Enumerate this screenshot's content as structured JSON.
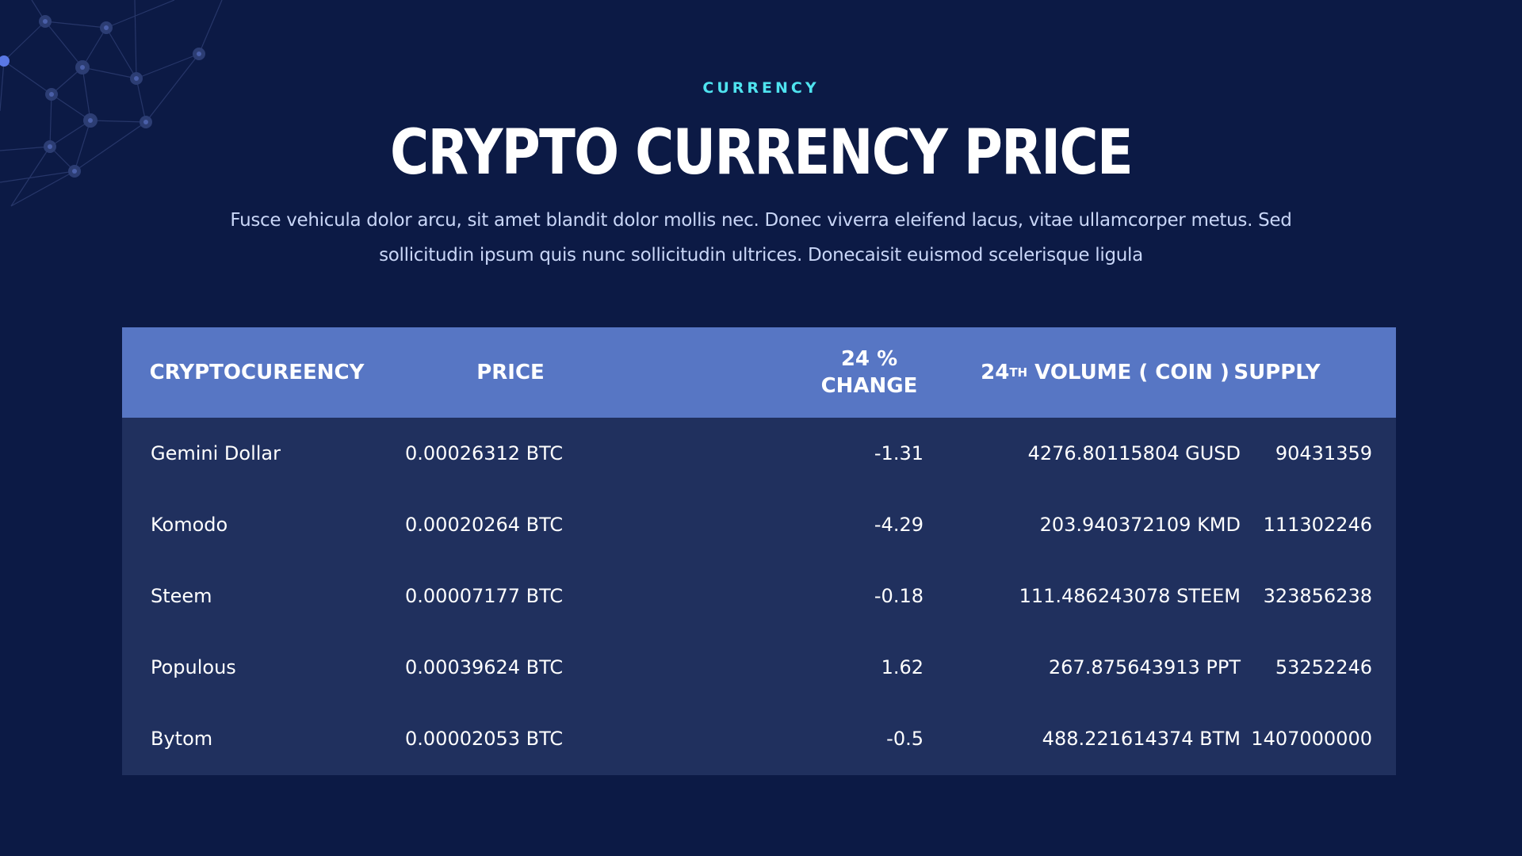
{
  "header": {
    "eyebrow": "CURRENCY",
    "title": "CRYPTO CURRENCY PRICE",
    "subtitle_line1": "Fusce vehicula dolor arcu, sit amet blandit dolor mollis nec. Donec viverra eleifend lacus, vitae ullamcorper metus. Sed",
    "subtitle_line2": "sollicitudin ipsum quis nunc sollicitudin ultrices. Donecaisit euismod scelerisque ligula"
  },
  "table": {
    "headers": {
      "cryptocurrency": "CRYPTOCUREENCY",
      "price": "PRICE",
      "change_line1": "24 %",
      "change_line2": "CHANGE",
      "volume_prefix": "24",
      "volume_sup": "TH",
      "volume_suffix": " VOLUME ( COIN )",
      "supply": "SUPPLY"
    },
    "rows": [
      {
        "name": "Gemini Dollar",
        "price": "0.00026312 BTC",
        "change": "-1.31",
        "volume": "4276.80115804 GUSD",
        "supply": "90431359"
      },
      {
        "name": "Komodo",
        "price": "0.00020264 BTC",
        "change": "-4.29",
        "volume": "203.940372109 KMD",
        "supply": "111302246"
      },
      {
        "name": "Steem",
        "price": "0.00007177 BTC",
        "change": "-0.18",
        "volume": "111.486243078 STEEM",
        "supply": "323856238"
      },
      {
        "name": "Populous",
        "price": "0.00039624 BTC",
        "change": "1.62",
        "volume": "267.875643913 PPT",
        "supply": "53252246"
      },
      {
        "name": "Bytom",
        "price": "0.00002053 BTC",
        "change": "-0.5",
        "volume": "488.221614374 BTM",
        "supply": "1407000000"
      }
    ]
  },
  "colors": {
    "background": "#0c1a45",
    "eyebrow": "#4fe3ef",
    "table_header": "#5776c4",
    "table_body": "#20305e",
    "subtitle": "#c9d6f7"
  }
}
